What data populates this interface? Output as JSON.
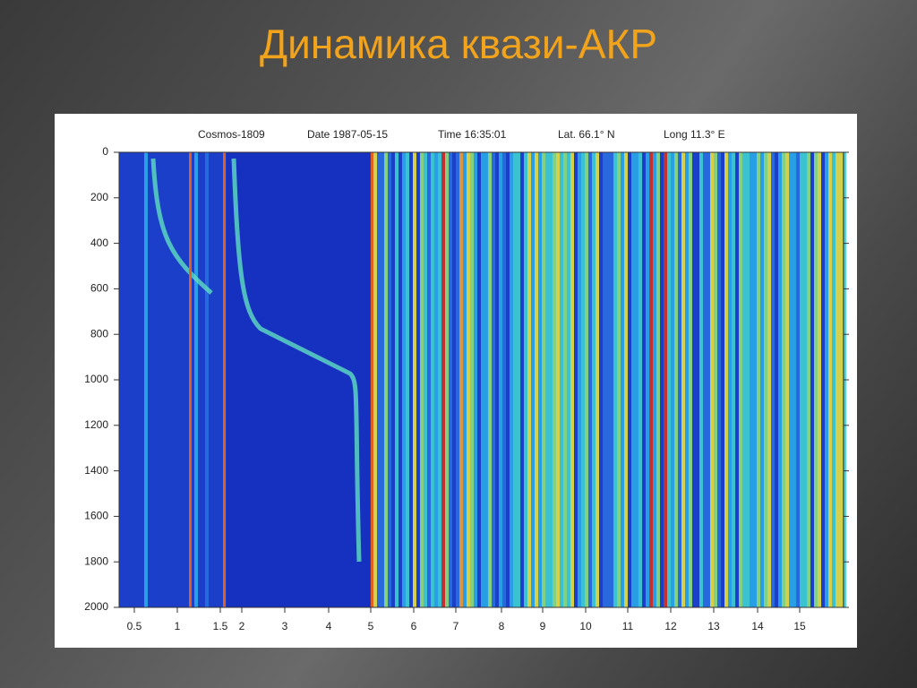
{
  "title": "Динамика квази-АКР",
  "figure": {
    "header": [
      "Cosmos-1809",
      "Date 1987-05-15",
      "Time 16:35:01",
      "Lat. 66.1° N",
      "Long 11.3° E"
    ],
    "y_ticks": [
      0,
      200,
      400,
      600,
      800,
      1000,
      1200,
      1400,
      1600,
      1800,
      2000
    ],
    "x_ticks": [
      0.5,
      1,
      1.5,
      2,
      3,
      4,
      5,
      6,
      7,
      8,
      9,
      10,
      11,
      12,
      13,
      14,
      15
    ]
  }
}
